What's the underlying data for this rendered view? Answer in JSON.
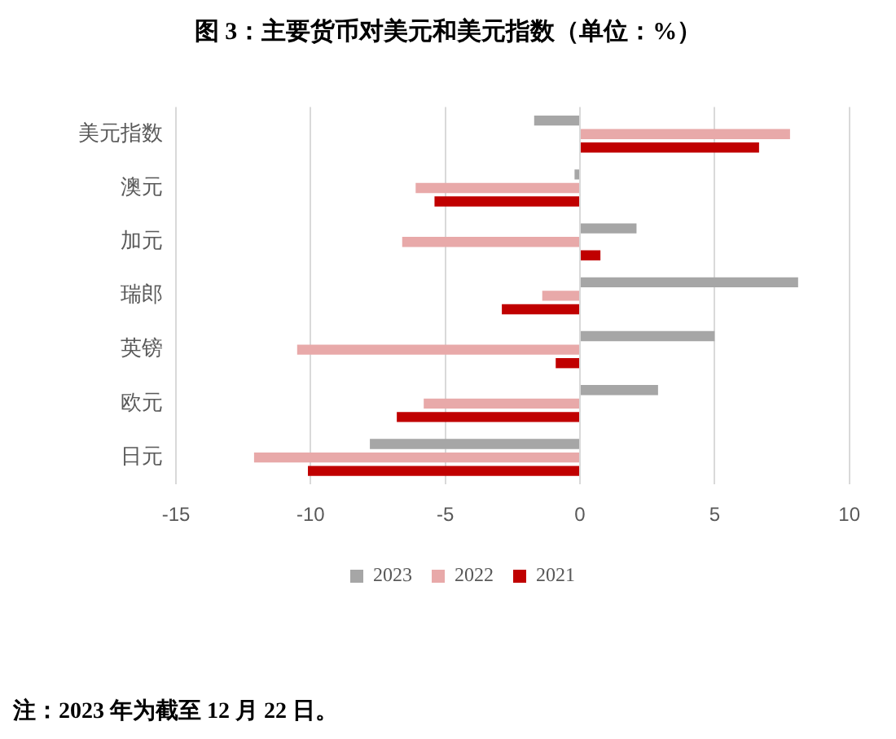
{
  "chart_data": {
    "type": "bar",
    "orientation": "horizontal",
    "title": "图 3：主要货币对美元和美元指数（单位：%）",
    "categories": [
      "美元指数",
      "澳元",
      "加元",
      "瑞郎",
      "英镑",
      "欧元",
      "日元"
    ],
    "series": [
      {
        "name": "2023",
        "color": "#a6a6a6",
        "values": [
          -1.7,
          -0.2,
          2.1,
          8.1,
          5.0,
          2.9,
          -7.8
        ]
      },
      {
        "name": "2022",
        "color": "#e8a9a9",
        "values": [
          7.8,
          -6.1,
          -6.6,
          -1.4,
          -10.5,
          -5.8,
          -12.1
        ]
      },
      {
        "name": "2021",
        "color": "#c00000",
        "values": [
          6.65,
          -5.4,
          0.76,
          -2.9,
          -0.9,
          -6.8,
          -10.1
        ]
      }
    ],
    "xlim": [
      -15,
      10
    ],
    "xticks": [
      -15,
      -10,
      -5,
      0,
      5,
      10
    ],
    "grid": "x",
    "legend": "bottom",
    "annotations": [
      "注：2023 年为截至 12 月 22 日。"
    ]
  }
}
